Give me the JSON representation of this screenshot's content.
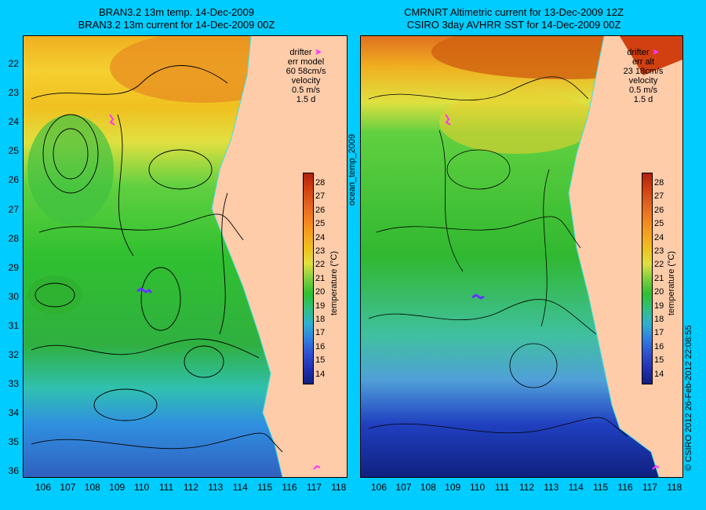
{
  "left_panel": {
    "title_line1": "BRAN3.2 13m temp. 14-Dec-2009",
    "title_line2": "BRAN3.2 13m current for 14-Dec-2009 00Z",
    "legend": {
      "drifter": "drifter",
      "err_label": "err model",
      "err_value": "60 58cm/s",
      "velocity": "velocity",
      "vel_scale": "0.5 m/s",
      "vel_time": "1.5 d"
    }
  },
  "right_panel": {
    "title_line1": "CMRNRT Altimetric current for 13-Dec-2009 12Z",
    "title_line2": "CSIRO 3day AVHRR SST for 14-Dec-2009 00Z",
    "legend": {
      "drifter": "drifter",
      "err_label": "err alt",
      "err_value": "23 18cm/s",
      "velocity": "velocity",
      "vel_scale": "0.5 m/s",
      "vel_time": "1.5 d"
    }
  },
  "center_label": "ocean_temp_2009",
  "footer_credit": "© CSIRO 2012   26-Feb-2012 22:08:55",
  "colorbar_label": "temperature (°C)",
  "colorbar_ticks": [
    "28",
    "27",
    "26",
    "25",
    "24",
    "23",
    "22",
    "21",
    "20",
    "19",
    "18",
    "17",
    "16",
    "15",
    "14"
  ],
  "lat_labels": [
    "22",
    "23",
    "24",
    "25",
    "26",
    "27",
    "28",
    "29",
    "30",
    "31",
    "32",
    "33",
    "34",
    "35",
    "36"
  ],
  "lon_labels": [
    "106",
    "107",
    "108",
    "109",
    "110",
    "111",
    "112",
    "113",
    "114",
    "115",
    "116",
    "117",
    "118"
  ],
  "colors": {
    "background": "#00ccff",
    "land": "#ffccaa",
    "warm": "#e06010",
    "mid": "#f0d020",
    "green": "#30c030",
    "cool": "#30a0e0",
    "cold": "#1030b0",
    "drifter": "#ff33ff",
    "coast_line": "#40e0e0"
  }
}
